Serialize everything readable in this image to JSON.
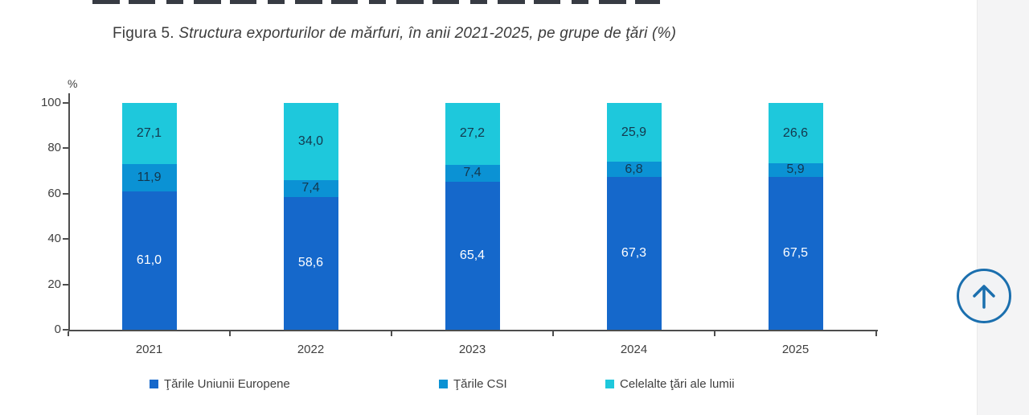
{
  "figure": {
    "title_prefix": "Figura 5.",
    "title_italic": " Structura exporturilor de mărfuri, în anii 2021-2025, pe grupe de ţări (%)"
  },
  "chart_data": {
    "type": "bar",
    "subtype": "stacked-vertical",
    "title": "Figura 5. Structura exporturilor de mărfuri, în anii 2021-2025, pe grupe de ţări (%)",
    "percent_label": "%",
    "categories": [
      "2021",
      "2022",
      "2023",
      "2024",
      "2025"
    ],
    "series": [
      {
        "name": "Ţările Uniunii Europene",
        "color": "#1568CB",
        "label_color": "#ffffff",
        "values": [
          61.0,
          58.6,
          65.4,
          67.3,
          67.5
        ],
        "labels": [
          "61,0",
          "58,6",
          "65,4",
          "67,3",
          "67,5"
        ]
      },
      {
        "name": "Ţările CSI",
        "color": "#0B92D4",
        "label_color": "#14384e",
        "values": [
          11.9,
          7.4,
          7.4,
          6.8,
          5.9
        ],
        "labels": [
          "11,9",
          "7,4",
          "7,4",
          "6,8",
          "5,9"
        ]
      },
      {
        "name": "Celelalte ţări ale lumii",
        "color": "#1EC8DC",
        "label_color": "#14384e",
        "values": [
          27.1,
          34.0,
          27.2,
          25.9,
          26.6
        ],
        "labels": [
          "27,1",
          "34,0",
          "27,2",
          "25,9",
          "26,6"
        ]
      }
    ],
    "y_ticks": [
      0,
      20,
      40,
      60,
      80,
      100
    ],
    "ylim": [
      0,
      100
    ],
    "grid": false,
    "legend_position": "bottom"
  },
  "icons": {
    "scroll_top_button": "up-arrow-icon"
  },
  "colors": {
    "accent_blue": "#1b6fae",
    "axis": "#4d4d4d",
    "sidebar_strip": "#f4f4f5"
  }
}
